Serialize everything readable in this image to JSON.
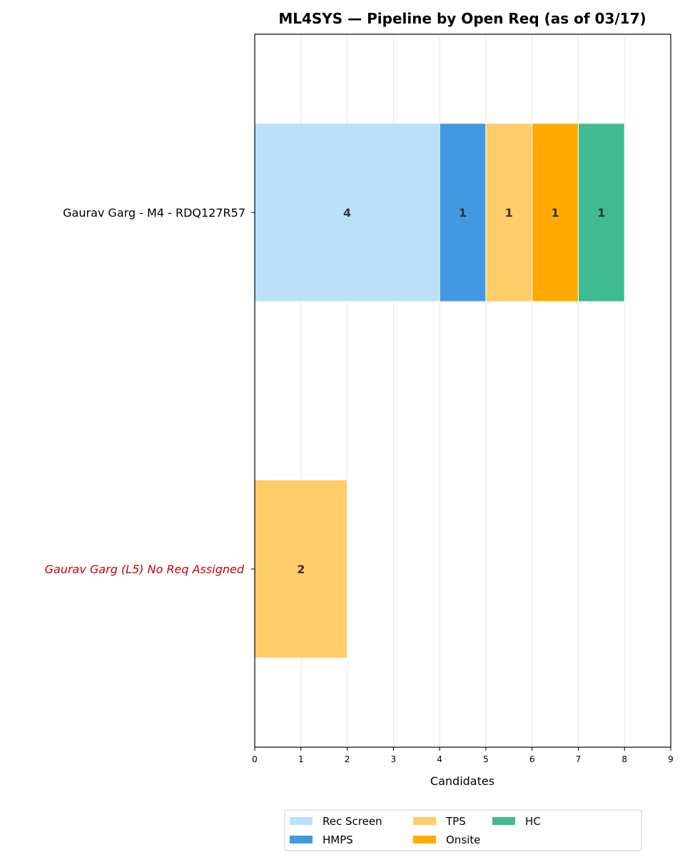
{
  "chart_data": {
    "type": "bar",
    "orientation": "horizontal",
    "stacked": true,
    "title": "ML4SYS — Pipeline by Open Req (as of 03/17)",
    "xlabel": "Candidates",
    "ylabel": "",
    "xlim": [
      0,
      9
    ],
    "xticks": [
      "0",
      "1",
      "2",
      "3",
      "4",
      "5",
      "6",
      "7",
      "8",
      "9"
    ],
    "grid": "vertical",
    "legend_position": "bottom-center",
    "categories": [
      "Gaurav Garg - M4 - RDQ127R57",
      "Gaurav Garg (L5) No Req Assigned"
    ],
    "category_highlight": [
      false,
      true
    ],
    "series": [
      {
        "name": "Rec Screen",
        "color": "#BBE1FA",
        "values": [
          4,
          0
        ]
      },
      {
        "name": "HMPS",
        "color": "#4299E1",
        "values": [
          1,
          0
        ]
      },
      {
        "name": "TPS",
        "color": "#FFCC69",
        "values": [
          1,
          2
        ]
      },
      {
        "name": "Onsite",
        "color": "#FFAA00",
        "values": [
          1,
          0
        ]
      },
      {
        "name": "HC",
        "color": "#40BA90",
        "values": [
          1,
          0
        ]
      }
    ],
    "highlight_color": "#cc0000"
  }
}
